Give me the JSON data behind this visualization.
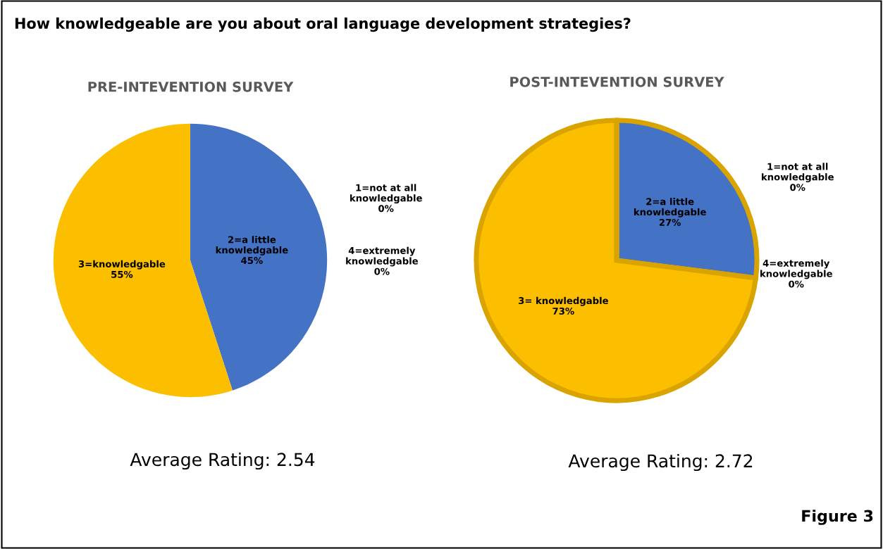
{
  "chart_data": [
    {
      "type": "pie",
      "title": "PRE-INTEVENTION SURVEY",
      "categories": [
        "1=not at all knowledgable",
        "2=a little knowledgable",
        "3=knowledgable",
        "4=extremely knowledgable"
      ],
      "values": [
        0,
        45,
        55,
        0
      ],
      "value_labels": [
        "0%",
        "45%",
        "55%",
        "0%"
      ],
      "colors": [
        "#ed7d31",
        "#4472c4",
        "#fbbf00",
        "#a5a5a5"
      ],
      "legend": false,
      "annotations": [
        "How knowledgeable are you about oral language development strategies?",
        "Average Rating: 2.54"
      ]
    },
    {
      "type": "pie",
      "title": "POST-INTEVENTION SURVEY",
      "categories": [
        "1=not at all knowledgable",
        "2=a little knowledgable",
        "3= knowledgable",
        "4=extremely knowledgable"
      ],
      "values": [
        0,
        27,
        73,
        0
      ],
      "value_labels": [
        "0%",
        "27%",
        "73%",
        "0%"
      ],
      "colors": [
        "#ed7d31",
        "#4472c4",
        "#fbbf00",
        "#a5a5a5"
      ],
      "legend": false,
      "annotations": [
        "Average Rating: 2.72",
        "Figure 3"
      ]
    }
  ]
}
